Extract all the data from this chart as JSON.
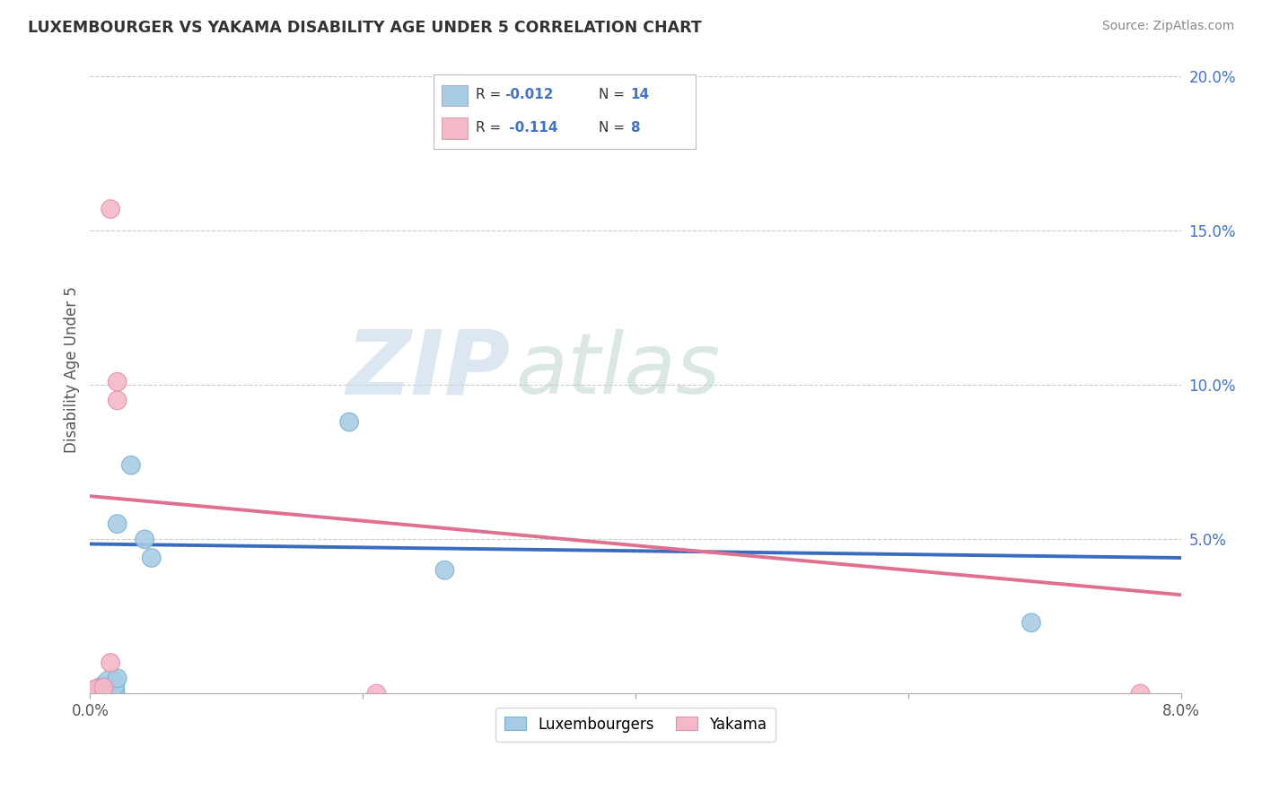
{
  "title": "LUXEMBOURGER VS YAKAMA DISABILITY AGE UNDER 5 CORRELATION CHART",
  "source": "Source: ZipAtlas.com",
  "ylabel": "Disability Age Under 5",
  "xlim": [
    0.0,
    0.08
  ],
  "ylim": [
    0.0,
    0.21
  ],
  "legend_labels": [
    "Luxembourgers",
    "Yakama"
  ],
  "blue_R": "-0.012",
  "blue_N": "14",
  "pink_R": "-0.114",
  "pink_N": "8",
  "blue_color": "#a8cce4",
  "pink_color": "#f4b8c8",
  "blue_line_color": "#3a6bbf",
  "pink_line_color": "#e07090",
  "watermark_ZIP": "ZIP",
  "watermark_atlas": "atlas",
  "background_color": "#ffffff",
  "grid_color": "#cccccc",
  "blue_scatter_x": [
    0.0005,
    0.001,
    0.001,
    0.0015,
    0.0015,
    0.0015,
    0.002,
    0.002,
    0.003,
    0.004,
    0.0045,
    0.019,
    0.026,
    0.069
  ],
  "blue_scatter_y": [
    0.0,
    0.0,
    0.001,
    0.0,
    0.001,
    0.003,
    0.005,
    0.055,
    0.074,
    0.05,
    0.044,
    0.088,
    0.04,
    0.023
  ],
  "pink_scatter_x": [
    0.0005,
    0.001,
    0.0015,
    0.0015,
    0.002,
    0.002,
    0.021,
    0.077
  ],
  "pink_scatter_y": [
    0.0,
    0.002,
    0.01,
    0.157,
    0.095,
    0.101,
    0.0,
    0.0
  ],
  "blue_trend_x": [
    0.0,
    0.08
  ],
  "blue_trend_y": [
    0.0485,
    0.044
  ],
  "pink_trend_x": [
    0.0,
    0.08
  ],
  "pink_trend_y": [
    0.064,
    0.032
  ],
  "marker_size_large": 500,
  "marker_size_medium": 220,
  "marker_size_small": 120
}
